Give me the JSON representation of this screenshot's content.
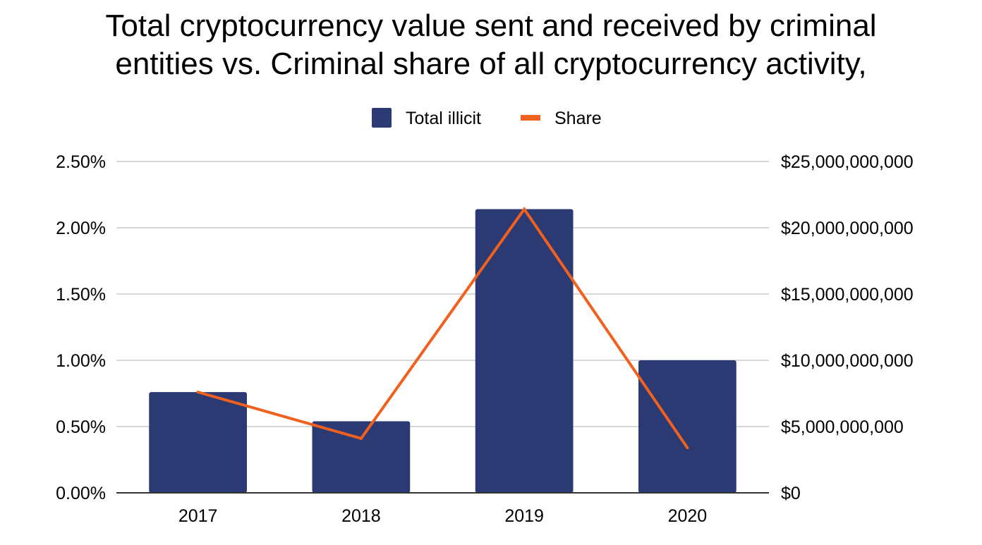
{
  "chart_data": {
    "type": "bar",
    "title_lines": [
      "Total cryptocurrency value sent and received by criminal",
      "entities vs. Criminal share of all cryptocurrency activity,"
    ],
    "categories": [
      "2017",
      "2018",
      "2019",
      "2020"
    ],
    "series": [
      {
        "name": "Total illicit",
        "type": "bar",
        "axis": "right",
        "color": "#2b3a72",
        "values": [
          7600000000,
          5400000000,
          21400000000,
          10000000000
        ]
      },
      {
        "name": "Share",
        "type": "line",
        "axis": "left",
        "color": "#f0601e",
        "values": [
          0.0076,
          0.0041,
          0.0214,
          0.0034
        ]
      }
    ],
    "y_left": {
      "ylim": [
        0,
        0.025
      ],
      "tick_values": [
        0,
        0.005,
        0.01,
        0.015,
        0.02,
        0.025
      ],
      "tick_labels": [
        "0.00%",
        "0.50%",
        "1.00%",
        "1.50%",
        "2.00%",
        "2.50%"
      ]
    },
    "y_right": {
      "ylim": [
        0,
        25000000000
      ],
      "tick_values": [
        0,
        5000000000,
        10000000000,
        15000000000,
        20000000000,
        25000000000
      ],
      "tick_labels": [
        "$0",
        "$5,000,000,000",
        "$10,000,000,000",
        "$15,000,000,000",
        "$20,000,000,000",
        "$25,000,000,000"
      ]
    },
    "grid": true,
    "legend": {
      "position": "top-center",
      "entries": [
        "Total illicit",
        "Share"
      ]
    }
  }
}
